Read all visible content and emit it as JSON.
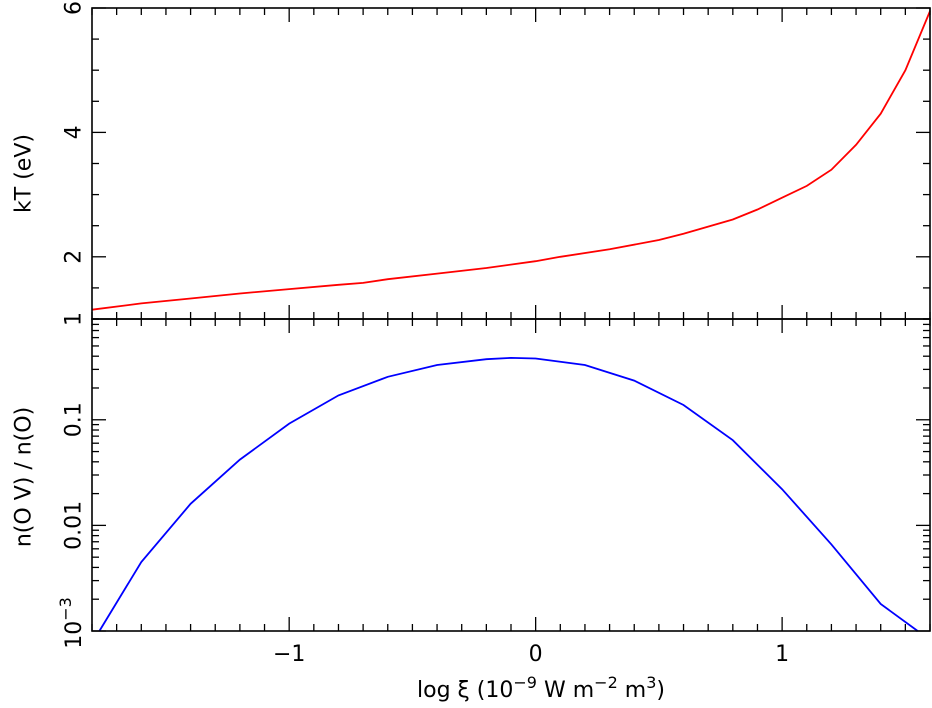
{
  "chart_data": [
    {
      "type": "line",
      "panel": "top",
      "ylabel": "kT (eV)",
      "xlim": [
        -1.8,
        1.6
      ],
      "ylim": [
        1,
        6
      ],
      "y_ticks": [
        2,
        4,
        6
      ],
      "y_tick_labels": [
        "2",
        "4",
        "6"
      ],
      "y_bottom_label": "1",
      "grid": false,
      "series": [
        {
          "color": "#ff0000",
          "x": [
            -1.8,
            -1.6,
            -1.4,
            -1.2,
            -1.0,
            -0.8,
            -0.7,
            -0.6,
            -0.4,
            -0.2,
            0.0,
            0.1,
            0.3,
            0.5,
            0.6,
            0.8,
            0.9,
            1.0,
            1.1,
            1.2,
            1.3,
            1.4,
            1.5,
            1.6
          ],
          "y": [
            1.15,
            1.25,
            1.33,
            1.41,
            1.48,
            1.55,
            1.58,
            1.64,
            1.73,
            1.82,
            1.93,
            2.0,
            2.12,
            2.27,
            2.37,
            2.6,
            2.76,
            2.95,
            3.14,
            3.4,
            3.8,
            4.3,
            5.0,
            5.95
          ]
        }
      ]
    },
    {
      "type": "line",
      "panel": "bottom",
      "ylabel": "n(O V) / n(O)",
      "xlabel_parts": {
        "prefix": "log ξ (10",
        "exp1": "−9",
        "mid1": " W m",
        "exp2": "−2",
        "mid2": " m",
        "exp3": "3",
        "suffix": ")"
      },
      "xlim": [
        -1.8,
        1.6
      ],
      "x_ticks": [
        -1,
        0,
        1
      ],
      "x_tick_labels": [
        "−1",
        "0",
        "1"
      ],
      "y_scale": "log",
      "ylim": [
        0.001,
        0.9
      ],
      "y_tick_labels": {
        "0.1": "0.1",
        "0.01": "0.01",
        "0.001_base": "10",
        "0.001_exp": "−3"
      },
      "grid": false,
      "series": [
        {
          "color": "#0000ff",
          "x": [
            -1.77,
            -1.6,
            -1.4,
            -1.2,
            -1.0,
            -0.8,
            -0.6,
            -0.4,
            -0.2,
            -0.1,
            0.0,
            0.2,
            0.4,
            0.6,
            0.8,
            1.0,
            1.2,
            1.4,
            1.55
          ],
          "y": [
            0.001,
            0.0045,
            0.016,
            0.042,
            0.092,
            0.17,
            0.255,
            0.33,
            0.375,
            0.385,
            0.38,
            0.33,
            0.235,
            0.138,
            0.064,
            0.022,
            0.0066,
            0.0018,
            0.001
          ]
        }
      ]
    }
  ]
}
